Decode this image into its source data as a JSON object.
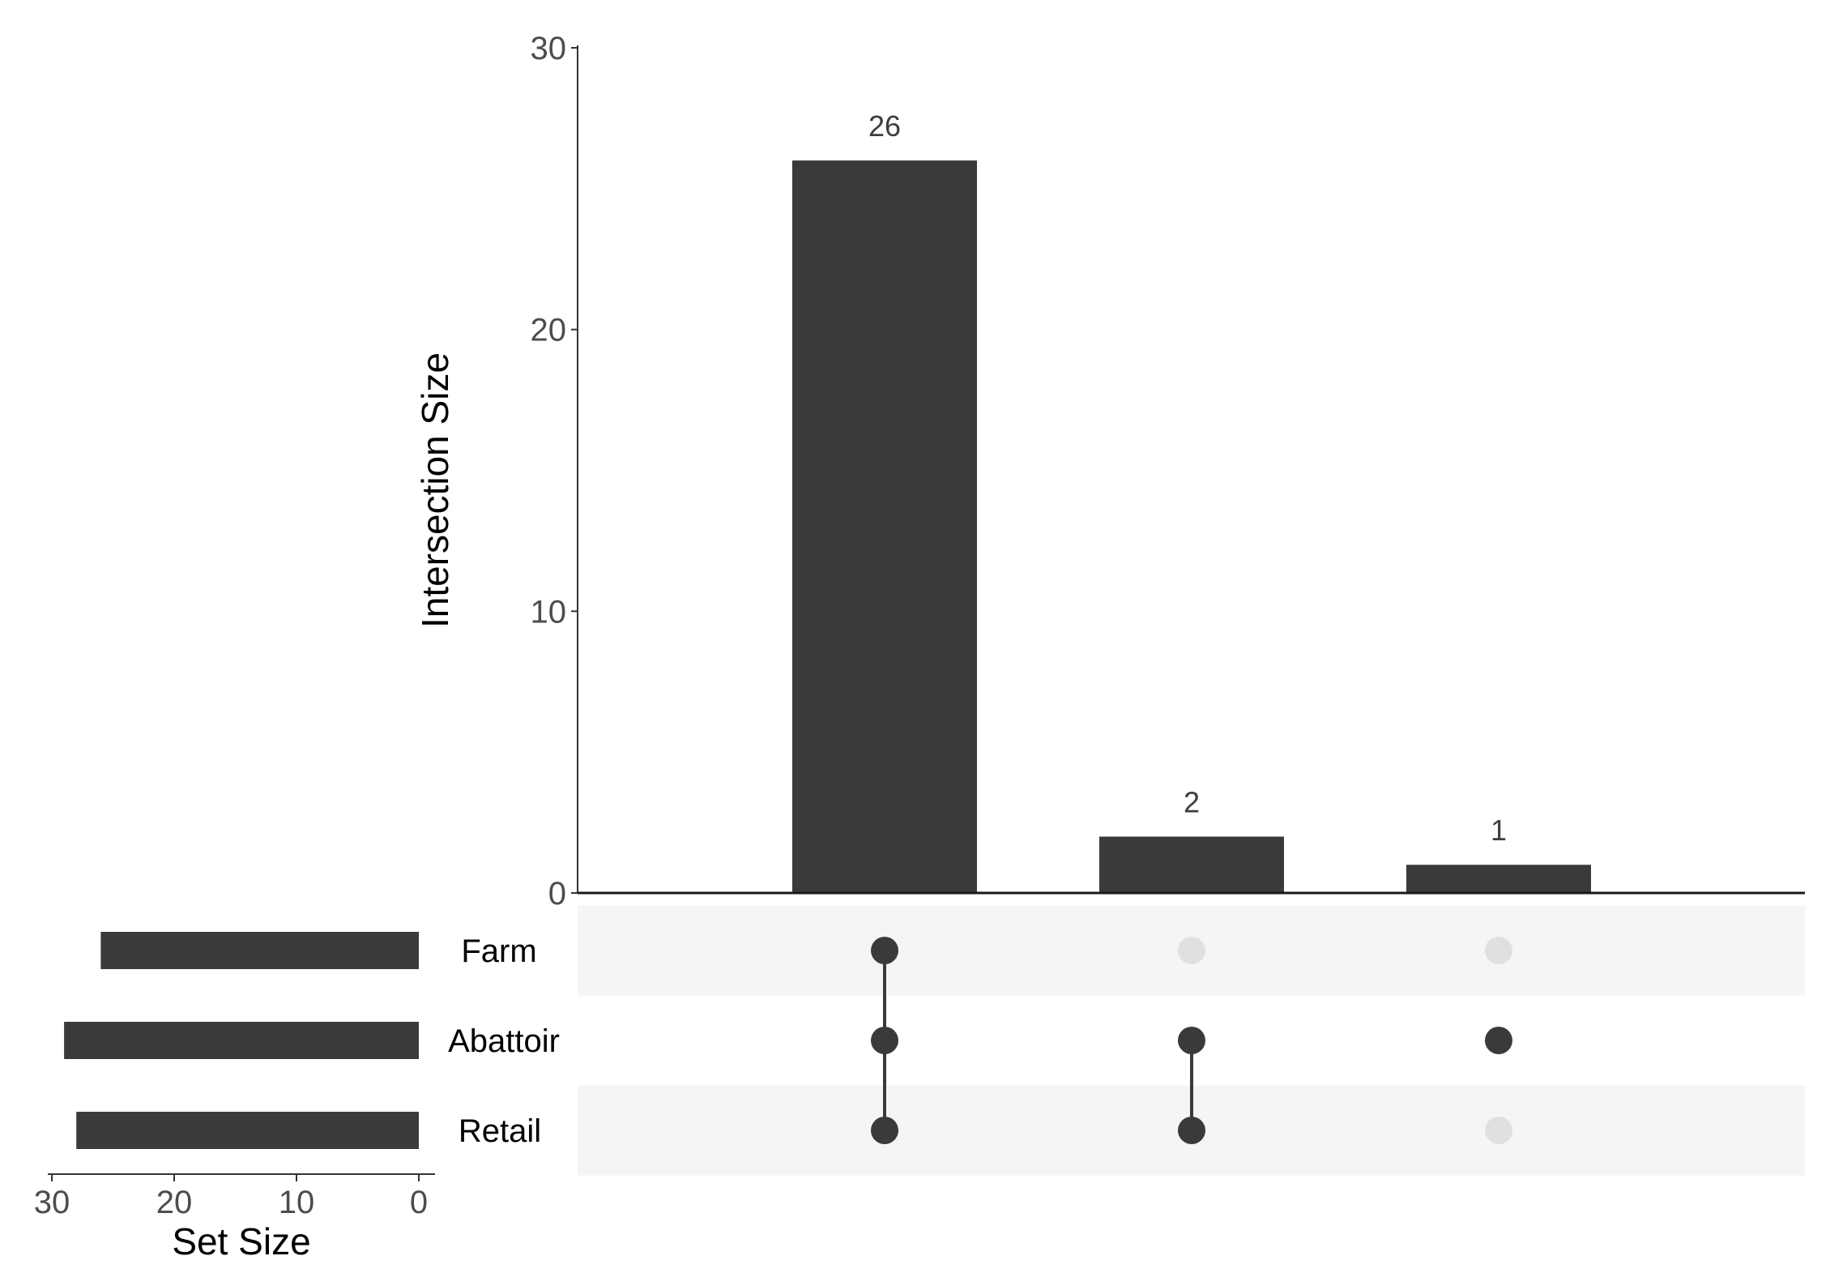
{
  "chart_data": {
    "type": "bar",
    "subtype": "upset",
    "bar_color": "#3a3a3a",
    "dot_inactive_color": "#e0e0e0",
    "stripe_color": "#f5f5f5",
    "intersections": {
      "ylabel": "Intersection Size",
      "ylim": [
        0,
        30
      ],
      "yticks": [
        "0",
        "10",
        "20",
        "30"
      ],
      "values": [
        26,
        2,
        1
      ],
      "labels": [
        "26",
        "2",
        "1"
      ],
      "members": [
        [
          "Farm",
          "Abattoir",
          "Retail"
        ],
        [
          "Abattoir",
          "Retail"
        ],
        [
          "Abattoir"
        ]
      ]
    },
    "sets": {
      "names": [
        "Farm",
        "Abattoir",
        "Retail"
      ],
      "sizes": [
        26,
        29,
        28
      ],
      "xlabel": "Set Size",
      "xlim": [
        30,
        0
      ],
      "xticks": [
        "30",
        "20",
        "10",
        "0"
      ]
    }
  }
}
